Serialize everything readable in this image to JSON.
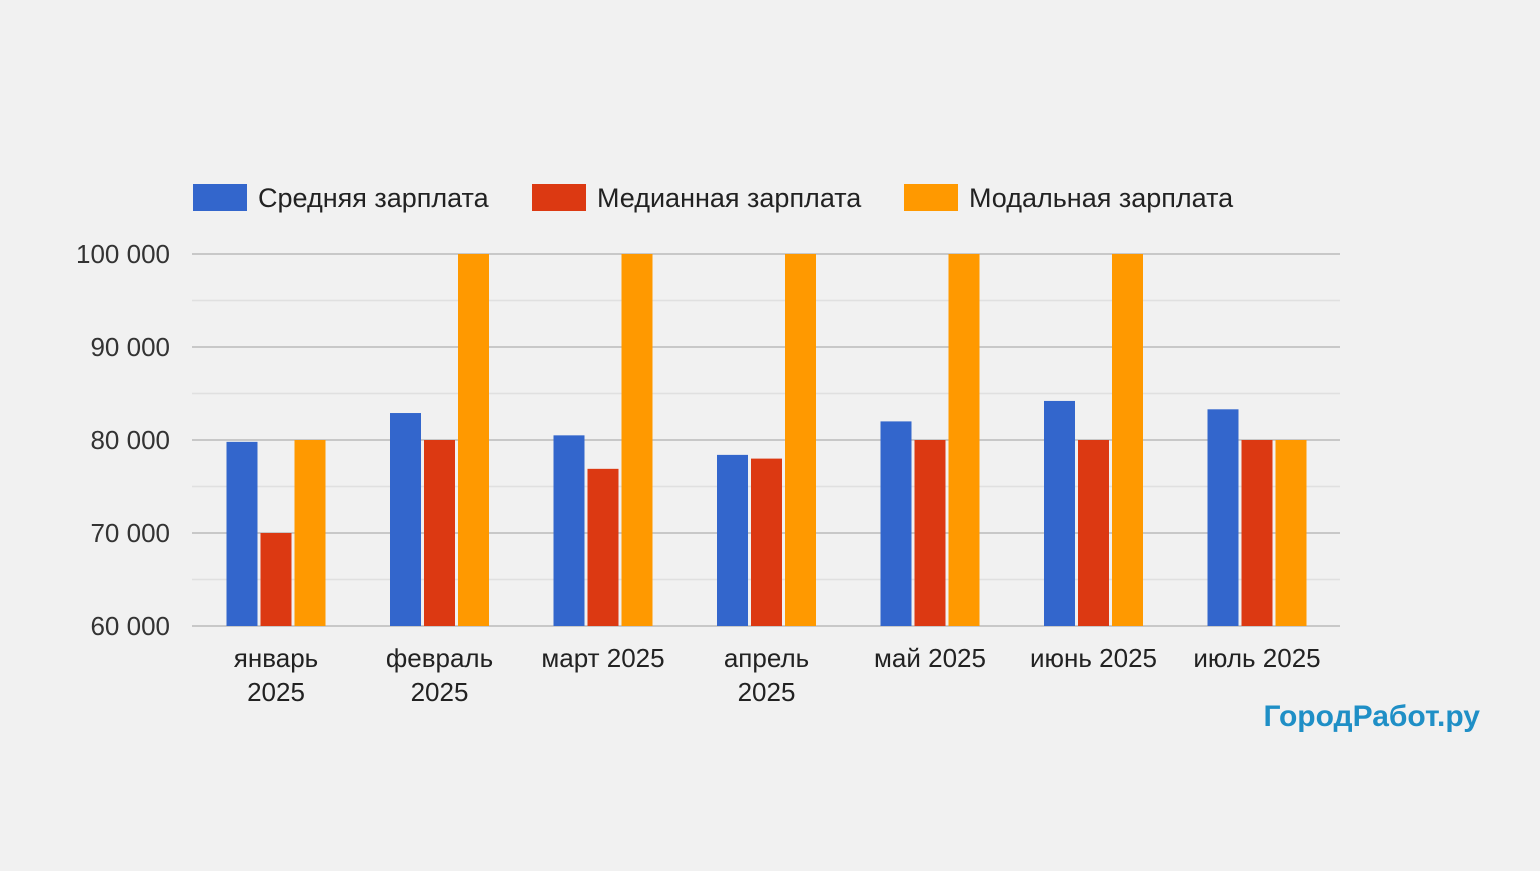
{
  "chart_data": {
    "type": "bar",
    "categories": [
      [
        "январь",
        "2025"
      ],
      [
        "февраль",
        "2025"
      ],
      [
        "март 2025"
      ],
      [
        "апрель",
        "2025"
      ],
      [
        "май 2025"
      ],
      [
        "июнь 2025"
      ],
      [
        "июль 2025"
      ]
    ],
    "series": [
      {
        "name": "Средняя зарплата",
        "color": "#3366cc",
        "values": [
          79800,
          82900,
          80500,
          78400,
          82000,
          84200,
          83300
        ]
      },
      {
        "name": "Медианная зарплата",
        "color": "#dc3912",
        "values": [
          70000,
          80000,
          76900,
          78000,
          80000,
          80000,
          80000
        ]
      },
      {
        "name": "Модальная зарплата",
        "color": "#ff9900",
        "values": [
          80000,
          100000,
          100000,
          100000,
          100000,
          100000,
          80000
        ]
      }
    ],
    "title": "",
    "xlabel": "",
    "ylabel": "",
    "ylim": [
      60000,
      100000
    ],
    "yticks": [
      "60 000",
      "70 000",
      "80 000",
      "90 000",
      "100 000"
    ],
    "ytick_values": [
      60000,
      70000,
      80000,
      90000,
      100000
    ],
    "grid": true,
    "legend": "top-left"
  },
  "watermark": {
    "text": "ГородРабот.ру",
    "color": "#1f8fc6"
  }
}
